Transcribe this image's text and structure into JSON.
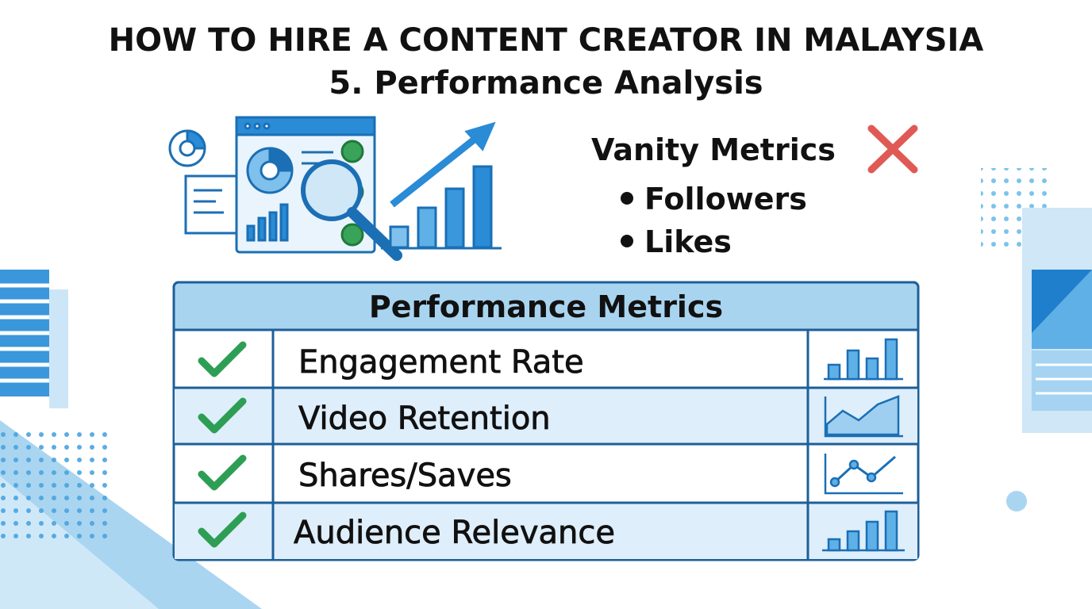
{
  "header": {
    "title": "HOW TO HIRE A CONTENT CREATOR IN MALAYSIA",
    "subtitle": "5. Performance Analysis"
  },
  "vanity": {
    "title": "Vanity Metrics",
    "items": [
      "Followers",
      "Likes"
    ]
  },
  "table": {
    "header": "Performance Metrics",
    "rows": [
      "Engagement Rate",
      "Video Retention",
      "Shares/Saves",
      "Audience Relevance"
    ]
  }
}
